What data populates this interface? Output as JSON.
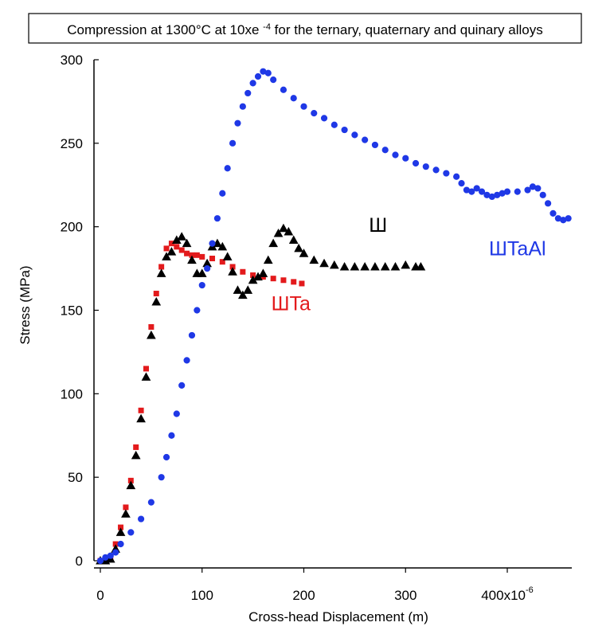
{
  "chart_data": {
    "type": "scatter",
    "title": "Compression at 1300°C at 10xe-4 for the ternary, quaternary and quinary alloys",
    "title_parts": {
      "base_before": "Compression at 1300°C at 10xe",
      "superscript": "-4",
      "base_after": " for the ternary, quaternary and quinary alloys"
    },
    "xlabel": "Cross-head Displacement (m)",
    "ylabel": "Stress (MPa)",
    "xlim": [
      0,
      460
    ],
    "ylim": [
      0,
      300
    ],
    "x_ticks": [
      0,
      100,
      200,
      300,
      400
    ],
    "x_tick_labels": [
      "0",
      "100",
      "200",
      "300",
      "400x10"
    ],
    "x_tick_exponent": "-6",
    "y_ticks": [
      0,
      50,
      100,
      150,
      200,
      250,
      300
    ],
    "y_tick_labels": [
      "0",
      "50",
      "100",
      "150",
      "200",
      "250",
      "300"
    ],
    "grid": false,
    "legend": "none (inline labels)",
    "series": [
      {
        "name": "ШTa",
        "marker": "square",
        "color": "#e31a1c",
        "label_x": 168,
        "label_y": 150,
        "points": [
          [
            0,
            0
          ],
          [
            5,
            0
          ],
          [
            10,
            2
          ],
          [
            15,
            10
          ],
          [
            20,
            20
          ],
          [
            25,
            32
          ],
          [
            30,
            48
          ],
          [
            35,
            68
          ],
          [
            40,
            90
          ],
          [
            45,
            115
          ],
          [
            50,
            140
          ],
          [
            55,
            160
          ],
          [
            60,
            176
          ],
          [
            65,
            187
          ],
          [
            70,
            190
          ],
          [
            75,
            188
          ],
          [
            80,
            186
          ],
          [
            85,
            184
          ],
          [
            90,
            183
          ],
          [
            95,
            183
          ],
          [
            100,
            182
          ],
          [
            110,
            181
          ],
          [
            120,
            179
          ],
          [
            130,
            176
          ],
          [
            140,
            173
          ],
          [
            150,
            171
          ],
          [
            160,
            170
          ],
          [
            170,
            169
          ],
          [
            180,
            168
          ],
          [
            190,
            167
          ],
          [
            198,
            166
          ]
        ]
      },
      {
        "name": "Ш",
        "marker": "triangle",
        "color": "#000000",
        "label_x": 264,
        "label_y": 197,
        "points": [
          [
            0,
            0
          ],
          [
            5,
            0
          ],
          [
            10,
            1
          ],
          [
            15,
            7
          ],
          [
            20,
            17
          ],
          [
            25,
            28
          ],
          [
            30,
            45
          ],
          [
            35,
            63
          ],
          [
            40,
            85
          ],
          [
            45,
            110
          ],
          [
            50,
            135
          ],
          [
            55,
            155
          ],
          [
            60,
            172
          ],
          [
            65,
            182
          ],
          [
            70,
            185
          ],
          [
            75,
            192
          ],
          [
            80,
            194
          ],
          [
            85,
            190
          ],
          [
            90,
            180
          ],
          [
            95,
            172
          ],
          [
            100,
            172
          ],
          [
            105,
            178
          ],
          [
            110,
            188
          ],
          [
            115,
            190
          ],
          [
            120,
            188
          ],
          [
            125,
            182
          ],
          [
            130,
            173
          ],
          [
            135,
            162
          ],
          [
            140,
            159
          ],
          [
            145,
            162
          ],
          [
            150,
            168
          ],
          [
            155,
            170
          ],
          [
            160,
            172
          ],
          [
            165,
            180
          ],
          [
            170,
            190
          ],
          [
            175,
            196
          ],
          [
            180,
            199
          ],
          [
            185,
            197
          ],
          [
            190,
            192
          ],
          [
            195,
            187
          ],
          [
            200,
            184
          ],
          [
            210,
            180
          ],
          [
            220,
            178
          ],
          [
            230,
            177
          ],
          [
            240,
            176
          ],
          [
            250,
            176
          ],
          [
            260,
            176
          ],
          [
            270,
            176
          ],
          [
            280,
            176
          ],
          [
            290,
            176
          ],
          [
            300,
            177
          ],
          [
            310,
            176
          ],
          [
            315,
            176
          ]
        ]
      },
      {
        "name": "ШTaAl",
        "marker": "circle",
        "color": "#1f38e6",
        "label_x": 382,
        "label_y": 183,
        "points": [
          [
            0,
            0
          ],
          [
            5,
            2
          ],
          [
            10,
            3
          ],
          [
            15,
            5
          ],
          [
            20,
            10
          ],
          [
            30,
            17
          ],
          [
            40,
            25
          ],
          [
            50,
            35
          ],
          [
            60,
            50
          ],
          [
            65,
            62
          ],
          [
            70,
            75
          ],
          [
            75,
            88
          ],
          [
            80,
            105
          ],
          [
            85,
            120
          ],
          [
            90,
            135
          ],
          [
            95,
            150
          ],
          [
            100,
            165
          ],
          [
            105,
            175
          ],
          [
            110,
            190
          ],
          [
            115,
            205
          ],
          [
            120,
            220
          ],
          [
            125,
            235
          ],
          [
            130,
            250
          ],
          [
            135,
            262
          ],
          [
            140,
            272
          ],
          [
            145,
            280
          ],
          [
            150,
            286
          ],
          [
            155,
            290
          ],
          [
            160,
            293
          ],
          [
            165,
            292
          ],
          [
            170,
            288
          ],
          [
            180,
            282
          ],
          [
            190,
            277
          ],
          [
            200,
            272
          ],
          [
            210,
            268
          ],
          [
            220,
            265
          ],
          [
            230,
            261
          ],
          [
            240,
            258
          ],
          [
            250,
            255
          ],
          [
            260,
            252
          ],
          [
            270,
            249
          ],
          [
            280,
            246
          ],
          [
            290,
            243
          ],
          [
            300,
            241
          ],
          [
            310,
            238
          ],
          [
            320,
            236
          ],
          [
            330,
            234
          ],
          [
            340,
            232
          ],
          [
            350,
            230
          ],
          [
            355,
            226
          ],
          [
            360,
            222
          ],
          [
            365,
            221
          ],
          [
            370,
            223
          ],
          [
            375,
            221
          ],
          [
            380,
            219
          ],
          [
            385,
            218
          ],
          [
            390,
            219
          ],
          [
            395,
            220
          ],
          [
            400,
            221
          ],
          [
            410,
            221
          ],
          [
            420,
            222
          ],
          [
            425,
            224
          ],
          [
            430,
            223
          ],
          [
            435,
            219
          ],
          [
            440,
            214
          ],
          [
            445,
            208
          ],
          [
            450,
            205
          ],
          [
            455,
            204
          ],
          [
            460,
            205
          ]
        ]
      }
    ]
  }
}
